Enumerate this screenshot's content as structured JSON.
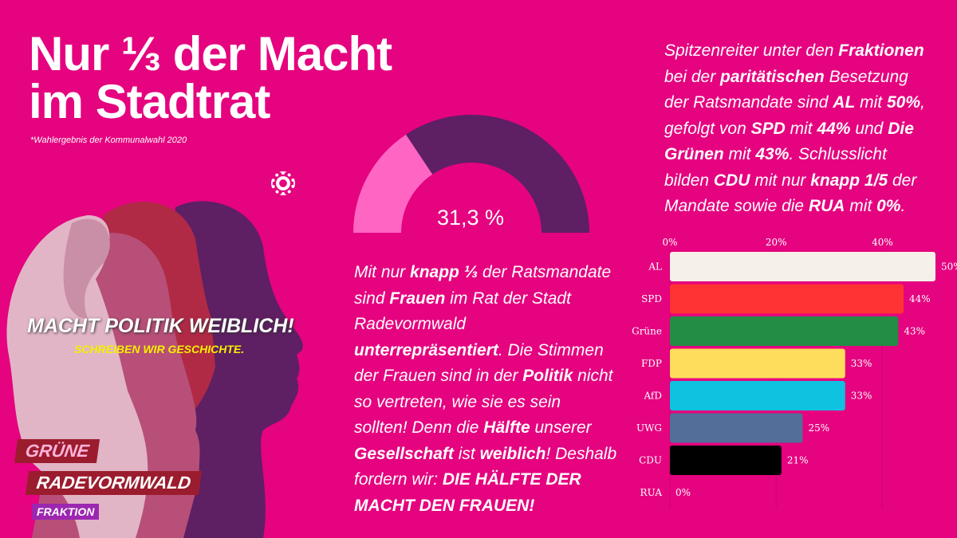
{
  "title": {
    "line1": "Nur ⅓ der Macht",
    "line2": "im Stadtrat",
    "note": "*Wahlergebnis der Kommunalwahl 2020"
  },
  "poster": {
    "slogan": "MACHT POLITIK WEIBLICH!",
    "subslogan": "SCHREIBEN WIR GESCHICHTE.",
    "logo_line1": "GRÜNE",
    "logo_line2": "RADEVORMWALD",
    "logo_line3": "FRAKTION",
    "sunflower_icon": "sunflower-icon"
  },
  "gauge": {
    "value": 31.3,
    "label": "31,3 %",
    "fill_color": "#ff66c4",
    "rest_color": "#5e1f63"
  },
  "paragraph_left": [
    [
      "Mit nur ",
      0
    ],
    [
      "knapp ⅓",
      1
    ],
    [
      " der Ratsmandate sind ",
      0
    ],
    [
      "Frauen",
      1
    ],
    [
      " im Rat der Stadt Radevormwald ",
      0
    ],
    [
      "unterrepräsentiert",
      1
    ],
    [
      ". Die Stimmen der Frauen sind in der ",
      0
    ],
    [
      "Politik",
      1
    ],
    [
      " nicht so vertreten, wie sie es sein sollten! Denn die ",
      0
    ],
    [
      "Hälfte",
      1
    ],
    [
      " unserer ",
      0
    ],
    [
      "Gesellschaft",
      1
    ],
    [
      " ist ",
      0
    ],
    [
      "weiblich",
      1
    ],
    [
      "! Deshalb fordern wir: ",
      0
    ],
    [
      "DIE HÄLFTE DER MACHT DEN FRAUEN!",
      1
    ]
  ],
  "paragraph_right": [
    [
      "Spitzenreiter unter den ",
      0
    ],
    [
      "Fraktionen",
      1
    ],
    [
      " bei der ",
      0
    ],
    [
      "paritätischen",
      1
    ],
    [
      " Besetzung der Ratsmandate sind ",
      0
    ],
    [
      "AL",
      1
    ],
    [
      " mit ",
      0
    ],
    [
      "50%",
      1
    ],
    [
      ", gefolgt von ",
      0
    ],
    [
      "SPD",
      1
    ],
    [
      " mit ",
      0
    ],
    [
      "44%",
      1
    ],
    [
      " und ",
      0
    ],
    [
      "Die Grünen",
      1
    ],
    [
      " mit ",
      0
    ],
    [
      "43%",
      1
    ],
    [
      ". Schlusslicht bilden ",
      0
    ],
    [
      "CDU",
      1
    ],
    [
      " mit nur ",
      0
    ],
    [
      "knapp 1/5",
      1
    ],
    [
      " der Mandate sowie die ",
      0
    ],
    [
      "RUA",
      1
    ],
    [
      " mit ",
      0
    ],
    [
      "0%",
      1
    ],
    [
      ".",
      0
    ]
  ],
  "chart_data": {
    "type": "bar",
    "orientation": "horizontal",
    "categories": [
      "AL",
      "SPD",
      "Grüne",
      "FDP",
      "AfD",
      "UWG",
      "CDU",
      "RUA"
    ],
    "values": [
      50,
      44,
      43,
      33,
      33,
      25,
      21,
      0
    ],
    "value_labels": [
      "50%",
      "44%",
      "43%",
      "33%",
      "33%",
      "25%",
      "21%",
      "0%"
    ],
    "colors": [
      "#f5f0e8",
      "#ff3333",
      "#238c45",
      "#ffdd5c",
      "#0ec2e0",
      "#526e99",
      "#000000",
      "#e5037f"
    ],
    "xticks": [
      0,
      20,
      40
    ],
    "xtick_labels": [
      "0%",
      "20%",
      "40%"
    ],
    "xlim": [
      0,
      50
    ],
    "grid": true
  }
}
